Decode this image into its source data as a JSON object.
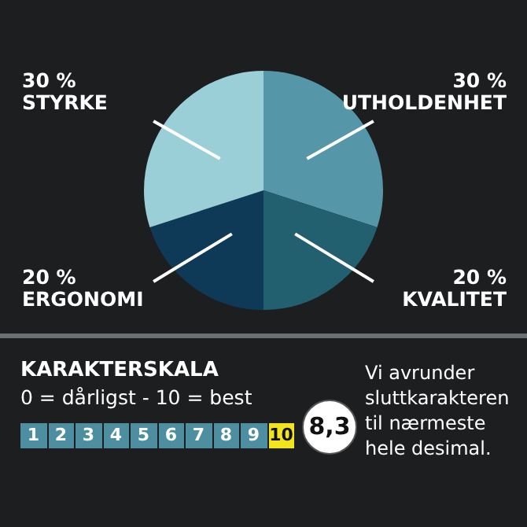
{
  "chart_data": {
    "type": "pie",
    "categories": [
      "UTHOLDENHET",
      "KVALITET",
      "ERGONOMI",
      "STYRKE"
    ],
    "values": [
      30,
      20,
      20,
      30
    ],
    "colors": [
      "#5597a8",
      "#23606f",
      "#0f3a57",
      "#9acfd8"
    ],
    "value_labels": [
      "30 %",
      "20 %",
      "20 %",
      "30 %"
    ],
    "legend": false,
    "annotations": [
      "KARAKTERSKALA",
      "0 = dårligst - 10 = best",
      "1",
      "2",
      "3",
      "4",
      "5",
      "6",
      "7",
      "8",
      "9",
      "10",
      "8,3",
      "Vi avrunder sluttkarakteren til nærmeste hele desimal."
    ]
  }
}
